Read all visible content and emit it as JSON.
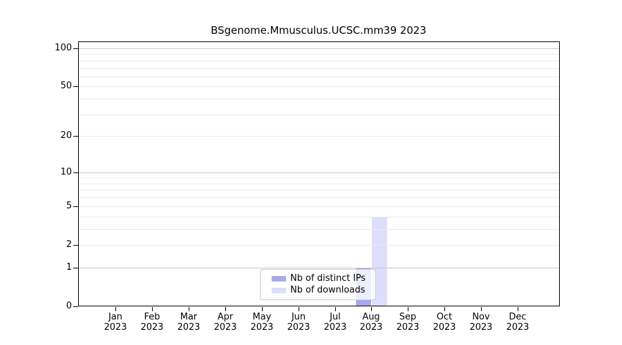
{
  "chart_data": {
    "type": "bar",
    "title": "BSgenome.Mmusculus.UCSC.mm39 2023",
    "xlabel": "",
    "ylabel": "",
    "yscale": "log1p",
    "ylim": [
      0,
      115
    ],
    "yticks": [
      100,
      50,
      20,
      10,
      5,
      2,
      1,
      0
    ],
    "grid": {
      "on": true,
      "major_values": [
        1,
        10,
        100
      ],
      "minor_values": [
        2,
        3,
        4,
        5,
        6,
        7,
        8,
        9,
        20,
        30,
        40,
        50,
        60,
        70,
        80,
        90
      ]
    },
    "categories": [
      {
        "label": "Jan",
        "sublabel": "2023"
      },
      {
        "label": "Feb",
        "sublabel": "2023"
      },
      {
        "label": "Mar",
        "sublabel": "2023"
      },
      {
        "label": "Apr",
        "sublabel": "2023"
      },
      {
        "label": "May",
        "sublabel": "2023"
      },
      {
        "label": "Jun",
        "sublabel": "2023"
      },
      {
        "label": "Jul",
        "sublabel": "2023"
      },
      {
        "label": "Aug",
        "sublabel": "2023"
      },
      {
        "label": "Sep",
        "sublabel": "2023"
      },
      {
        "label": "Oct",
        "sublabel": "2023"
      },
      {
        "label": "Nov",
        "sublabel": "2023"
      },
      {
        "label": "Dec",
        "sublabel": "2023"
      }
    ],
    "series": [
      {
        "name": "Nb of distinct IPs",
        "color": "#a6a9ef",
        "values": [
          0,
          0,
          0,
          0,
          0,
          0,
          0,
          1,
          0,
          0,
          0,
          0
        ]
      },
      {
        "name": "Nb of downloads",
        "color": "#dcdefb",
        "values": [
          0,
          0,
          0,
          0,
          0,
          0,
          0,
          4,
          0,
          0,
          0,
          0
        ]
      }
    ],
    "legend_position": "lower center"
  },
  "colors": {
    "major_grid": "#c6c6c6",
    "minor_grid": "#ebebeb",
    "axis": "#000000",
    "legend_border": "#cccccc",
    "background": "#ffffff"
  }
}
